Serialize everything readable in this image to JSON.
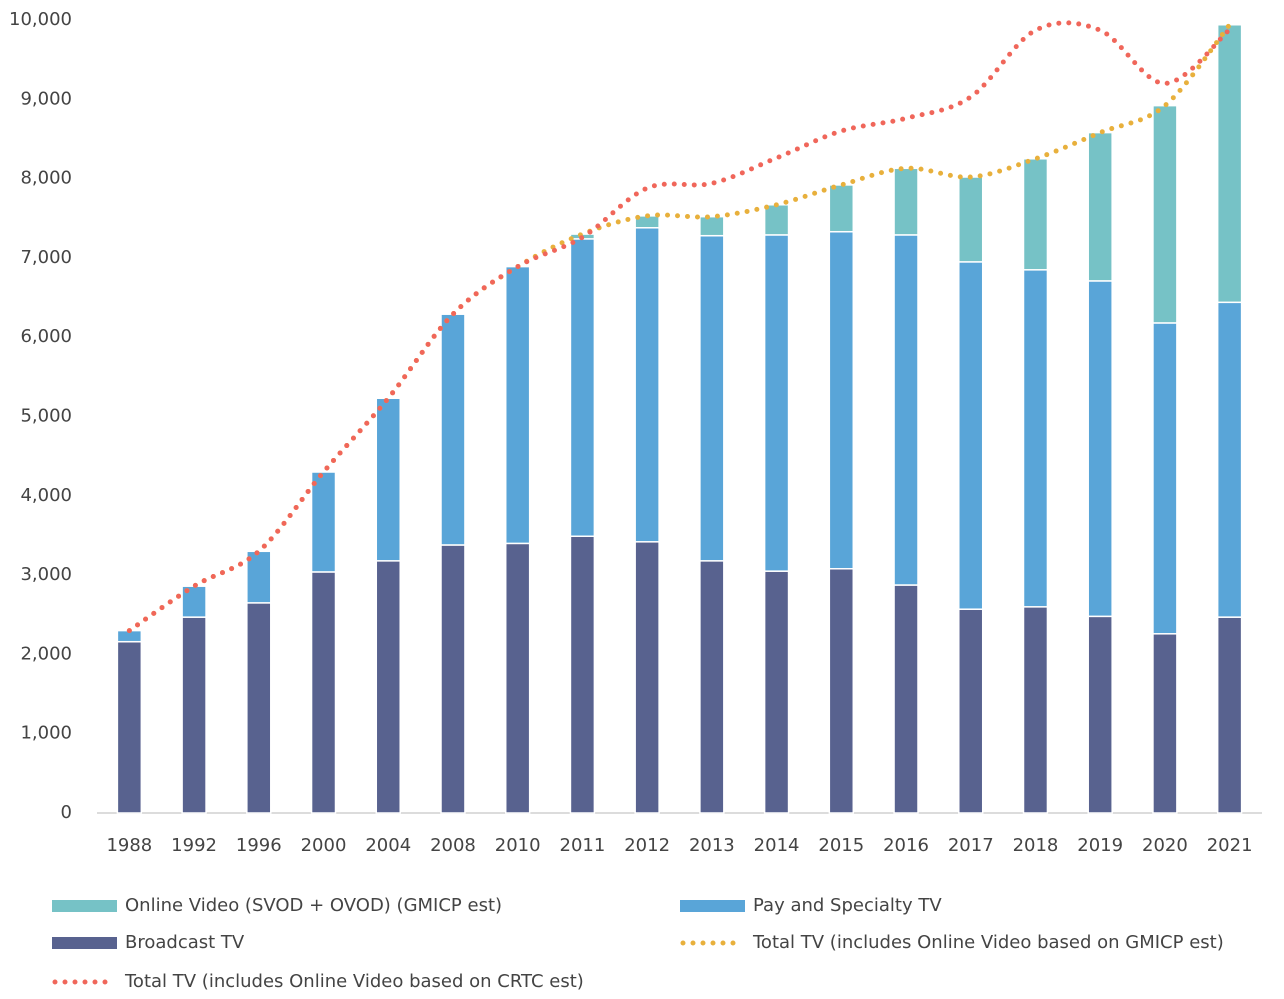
{
  "chart_data": {
    "type": "bar",
    "categories": [
      "1988",
      "1992",
      "1996",
      "2000",
      "2004",
      "2008",
      "2010",
      "2011",
      "2012",
      "2013",
      "2014",
      "2015",
      "2016",
      "2017",
      "2018",
      "2019",
      "2020",
      "2021"
    ],
    "series": [
      {
        "name": "Online Video (SVOD + OVOD) (GMICP est)",
        "type": "bar",
        "color": "#76c2c6",
        "values": [
          null,
          null,
          null,
          null,
          null,
          null,
          null,
          60,
          150,
          240,
          380,
          590,
          840,
          1070,
          1400,
          1870,
          2740,
          3500
        ]
      },
      {
        "name": "Pay and Specialty TV",
        "type": "bar",
        "color": "#59a5d8",
        "values": [
          140,
          390,
          650,
          1260,
          2050,
          2910,
          3490,
          3750,
          3960,
          4100,
          4240,
          4250,
          4415,
          4380,
          4250,
          4230,
          3920,
          3970
        ]
      },
      {
        "name": "Broadcast TV",
        "type": "bar",
        "color": "#58628f",
        "values": [
          2160,
          2470,
          2650,
          3040,
          3180,
          3380,
          3400,
          3490,
          3420,
          3180,
          3050,
          3080,
          2875,
          2570,
          2600,
          2480,
          2260,
          2470
        ]
      },
      {
        "name": "Total TV (includes Online Video based on GMICP est)",
        "type": "line",
        "dash": "dotted",
        "color": "#e8b03c",
        "values": [
          2300,
          2860,
          3300,
          4300,
          5230,
          6290,
          6890,
          7300,
          7530,
          7520,
          7670,
          7920,
          8130,
          8020,
          8250,
          8580,
          8920,
          9940
        ]
      },
      {
        "name": "Total TV (includes Online Video based on CRTC est)",
        "type": "line",
        "dash": "dotted",
        "color": "#f0665a",
        "values": [
          2300,
          2860,
          3300,
          4300,
          5230,
          6290,
          6890,
          7260,
          7880,
          7940,
          8260,
          8600,
          8760,
          9030,
          9870,
          9870,
          9200,
          9880
        ]
      }
    ],
    "ylim": [
      0,
      10000
    ],
    "yticks": [
      0,
      {
        "value": 1000,
        "label": "1,000"
      },
      {
        "value": 2000,
        "label": "2,000"
      },
      {
        "value": 3000,
        "label": "3,000"
      },
      {
        "value": 4000,
        "label": "4,000"
      },
      {
        "value": 5000,
        "label": "5,000"
      },
      {
        "value": 6000,
        "label": "6,000"
      },
      {
        "value": 7000,
        "label": "7,000"
      },
      {
        "value": 8000,
        "label": "8,000"
      },
      {
        "value": 9000,
        "label": "9,000"
      },
      {
        "value": 10000,
        "label": "10,000"
      }
    ],
    "grid": false,
    "legend": "bottom"
  }
}
